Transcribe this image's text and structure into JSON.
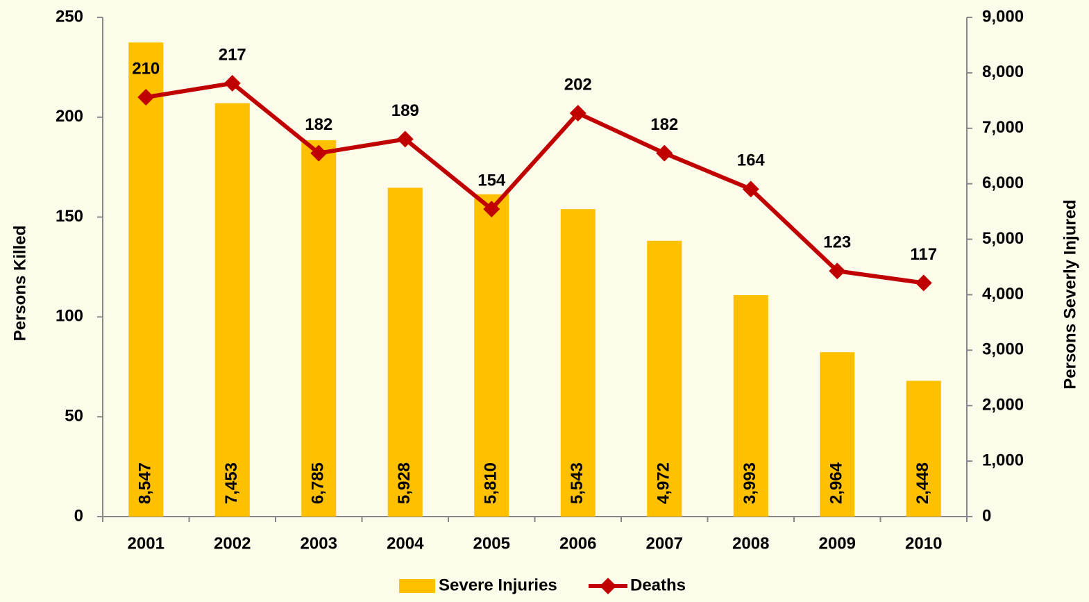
{
  "chart_data": {
    "type": "bar",
    "categories": [
      "2001",
      "2002",
      "2003",
      "2004",
      "2005",
      "2006",
      "2007",
      "2008",
      "2009",
      "2010"
    ],
    "series": [
      {
        "name": "Severe Injuries",
        "type": "bar",
        "axis": "y2",
        "color": "#ffc000",
        "values": [
          8547,
          7453,
          6785,
          5928,
          5810,
          5543,
          4972,
          3993,
          2964,
          2448
        ],
        "value_labels": [
          "8,547",
          "7,453",
          "6,785",
          "5,928",
          "5,810",
          "5,543",
          "4,972",
          "3,993",
          "2,964",
          "2,448"
        ]
      },
      {
        "name": "Deaths",
        "type": "line",
        "color": "#c00000",
        "values": [
          210,
          217,
          182,
          189,
          154,
          202,
          182,
          164,
          123,
          117
        ]
      }
    ],
    "ylabel": "Persons Killed",
    "y2label": "Persons Severly Injured",
    "ylim": [
      0,
      250
    ],
    "yticks": [
      0,
      50,
      100,
      150,
      200,
      250
    ],
    "y2lim": [
      0,
      9000
    ],
    "y2ticks": [
      0,
      {
        "value": 1000,
        "label": "1,000"
      },
      {
        "value": 2000,
        "label": "2,000"
      },
      {
        "value": 3000,
        "label": "3,000"
      },
      {
        "value": 4000,
        "label": "4,000"
      },
      {
        "value": 5000,
        "label": "5,000"
      },
      {
        "value": 6000,
        "label": "6,000"
      },
      {
        "value": 7000,
        "label": "7,000"
      },
      {
        "value": 8000,
        "label": "8,000"
      },
      {
        "value": 9000,
        "label": "9,000"
      }
    ],
    "legend": "bottom"
  }
}
